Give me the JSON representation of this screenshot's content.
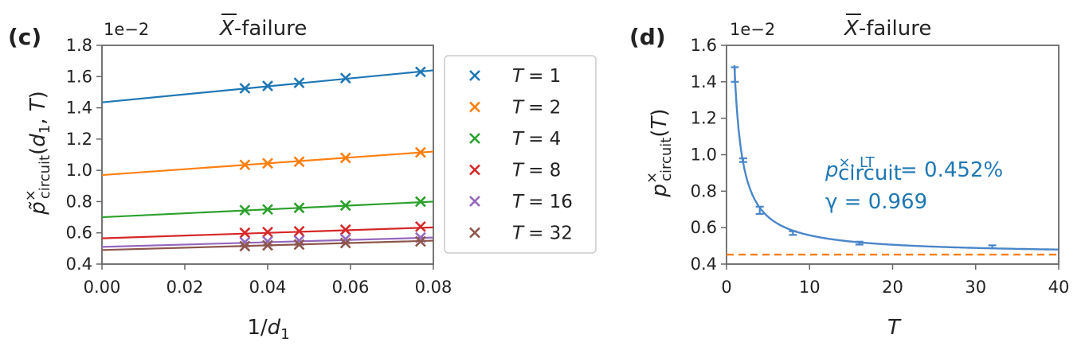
{
  "chart_data": [
    {
      "type": "scatter",
      "panel_label": "(c)",
      "title": "X̄-failure",
      "title_main": "X",
      "title_rest": "-failure",
      "offset_text": "1e−2",
      "xlabel": "1/d₁",
      "ylabel": "p̃ˣcircuit(d₁, T)",
      "xlim": [
        0,
        0.08
      ],
      "ylim": [
        0.4,
        1.8
      ],
      "xticks": [
        "0.00",
        "0.02",
        "0.04",
        "0.06",
        "0.08"
      ],
      "yticks": [
        "0.4",
        "0.6",
        "0.8",
        "1.0",
        "1.2",
        "1.4",
        "1.6",
        "1.8"
      ],
      "x": [
        0.0345,
        0.04,
        0.0476,
        0.0588,
        0.0769
      ],
      "series": [
        {
          "name": "T = 1",
          "legend_left": "T",
          "legend_right": "= 1",
          "color": "#1f77b4",
          "values": [
            1.525,
            1.54,
            1.56,
            1.59,
            1.63
          ],
          "fit": [
            1.435,
            1.64
          ]
        },
        {
          "name": "T = 2",
          "legend_left": "T",
          "legend_right": "= 2",
          "color": "#ff7f0e",
          "values": [
            1.035,
            1.045,
            1.055,
            1.08,
            1.115
          ],
          "fit": [
            0.97,
            1.12
          ]
        },
        {
          "name": "T = 4",
          "legend_left": "T",
          "legend_right": "= 4",
          "color": "#2ca02c",
          "values": [
            0.745,
            0.75,
            0.76,
            0.775,
            0.8
          ],
          "fit": [
            0.7,
            0.8
          ]
        },
        {
          "name": "T = 8",
          "legend_left": "T",
          "legend_right": "= 8",
          "color": "#d62728",
          "values": [
            0.6,
            0.605,
            0.61,
            0.62,
            0.64
          ],
          "fit": [
            0.565,
            0.635
          ]
        },
        {
          "name": "T = 16",
          "legend_left": "T",
          "legend_right": "= 16",
          "color": "#9467bd",
          "values": [
            0.54,
            0.545,
            0.55,
            0.56,
            0.57
          ],
          "fit": [
            0.51,
            0.57
          ]
        },
        {
          "name": "T = 32",
          "legend_left": "T",
          "legend_right": "= 32",
          "color": "#8c564b",
          "values": [
            0.515,
            0.52,
            0.525,
            0.535,
            0.545
          ],
          "fit": [
            0.49,
            0.55
          ]
        }
      ]
    },
    {
      "type": "scatter",
      "panel_label": "(d)",
      "title": "X̄-failure",
      "title_main": "X",
      "title_rest": "-failure",
      "offset_text": "1e−2",
      "xlabel": "T",
      "ylabel": "pˣcircuit(T)",
      "xlim": [
        0,
        40
      ],
      "ylim": [
        0.4,
        1.6
      ],
      "xticks": [
        "0",
        "10",
        "20",
        "30",
        "40"
      ],
      "yticks": [
        "0.4",
        "0.6",
        "0.8",
        "1.0",
        "1.2",
        "1.4",
        "1.6"
      ],
      "points": [
        {
          "x": 1,
          "y": 1.44,
          "err": 0.04
        },
        {
          "x": 2,
          "y": 0.97,
          "err": 0.01
        },
        {
          "x": 4,
          "y": 0.695,
          "err": 0.02
        },
        {
          "x": 8,
          "y": 0.57,
          "err": 0.01
        },
        {
          "x": 16,
          "y": 0.515,
          "err": 0.008
        },
        {
          "x": 32,
          "y": 0.495,
          "err": 0.008
        }
      ],
      "fit_curve": {
        "asymptote": 0.452,
        "gamma": 0.969,
        "color": "#4a86c8"
      },
      "asymptote_line": {
        "y": 0.452,
        "color": "#ff7f0e",
        "style": "dashed"
      },
      "annotation": {
        "line1_sym": "p",
        "line1_sup": "×, LT",
        "line1_sub": "circuit",
        "line1_val": "= 0.452%",
        "line2": "γ = 0.969",
        "color": "#1f77b4"
      }
    }
  ]
}
